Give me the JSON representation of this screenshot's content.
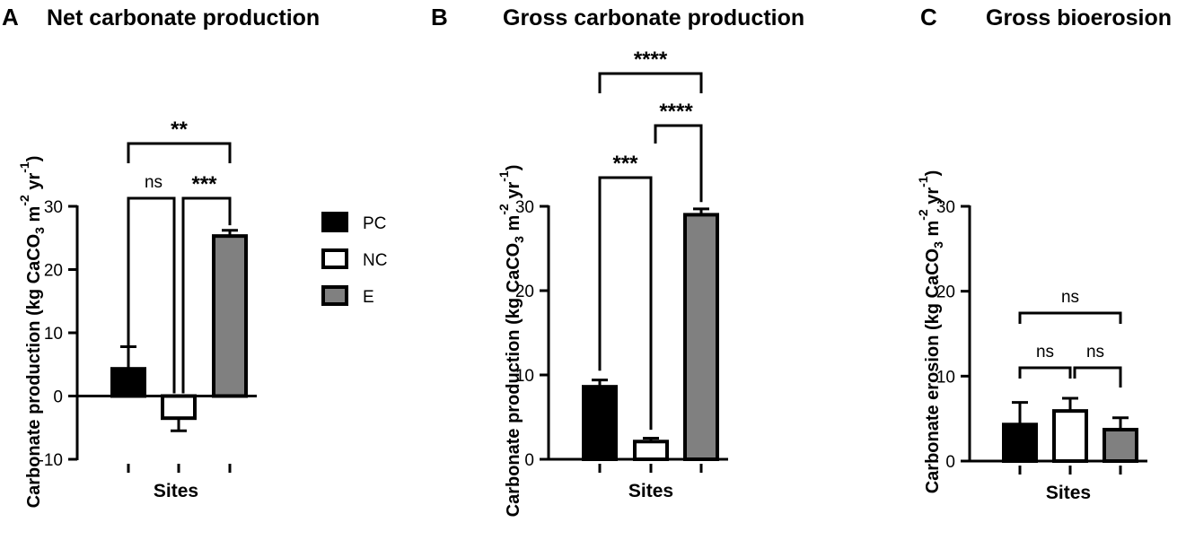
{
  "colors": {
    "PC": "#000000",
    "NC": "#ffffff",
    "E": "#808080",
    "stroke": "#000000"
  },
  "legend": {
    "items": [
      {
        "key": "PC",
        "label": "PC"
      },
      {
        "key": "NC",
        "label": "NC"
      },
      {
        "key": "E",
        "label": "E"
      }
    ]
  },
  "chart_data": [
    {
      "type": "bar",
      "panel": "A",
      "title": "Net carbonate production",
      "xlabel": "Sites",
      "ylabel": "Carbonate production (kg CaCO3 m-2 yr-1)",
      "ylim": [
        -10,
        30
      ],
      "yticks": [
        -10,
        0,
        10,
        20,
        30
      ],
      "categories": [
        "PC",
        "NC",
        "E"
      ],
      "values": [
        4.3,
        -3.5,
        25.3
      ],
      "errors": [
        3.5,
        2.0,
        0.9
      ],
      "comparisons": [
        {
          "from": "PC",
          "to": "NC",
          "label": "ns"
        },
        {
          "from": "NC",
          "to": "E",
          "label": "***"
        },
        {
          "from": "PC",
          "to": "E",
          "label": "**"
        }
      ]
    },
    {
      "type": "bar",
      "panel": "B",
      "title": "Gross carbonate production",
      "xlabel": "Sites",
      "ylabel": "Carbonate production (kg CaCO3 m-2 yr-1)",
      "ylim": [
        0,
        30
      ],
      "yticks": [
        0,
        10,
        20,
        30
      ],
      "categories": [
        "PC",
        "NC",
        "E"
      ],
      "values": [
        8.6,
        2.1,
        29.0
      ],
      "errors": [
        0.8,
        0.4,
        0.7
      ],
      "comparisons": [
        {
          "from": "PC",
          "to": "NC",
          "label": "***"
        },
        {
          "from": "NC",
          "to": "E",
          "label": "****"
        },
        {
          "from": "PC",
          "to": "E",
          "label": "****"
        }
      ]
    },
    {
      "type": "bar",
      "panel": "C",
      "title": "Gross bioerosion",
      "xlabel": "Sites",
      "ylabel": "Carbonate erosion (kg CaCO3 m-2 yr-1)",
      "ylim": [
        0,
        30
      ],
      "yticks": [
        0,
        10,
        20,
        30
      ],
      "categories": [
        "PC",
        "NC",
        "E"
      ],
      "values": [
        4.3,
        5.9,
        3.7
      ],
      "errors": [
        2.6,
        1.5,
        1.4
      ],
      "comparisons": [
        {
          "from": "PC",
          "to": "NC",
          "label": "ns"
        },
        {
          "from": "NC",
          "to": "E",
          "label": "ns"
        },
        {
          "from": "PC",
          "to": "E",
          "label": "ns"
        }
      ]
    }
  ]
}
